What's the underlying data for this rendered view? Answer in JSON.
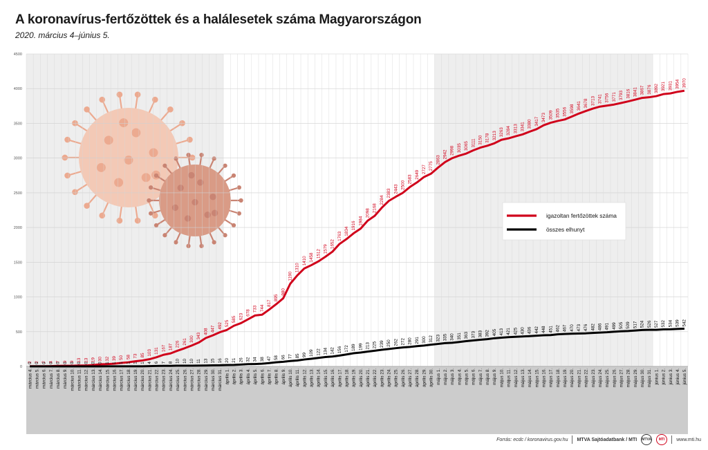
{
  "title": "A koronavírus-fertőzöttek és a halálesetek száma Magyarországon",
  "subtitle": "2020. március 4–június 5.",
  "footer": {
    "source": "Forrás: ecdc / koronavirus.gov.hu",
    "agency": "MTVA Sajtóadatbank / MTI",
    "logo_1": "MTVA",
    "logo_2": "MTI",
    "website": "www.mti.hu"
  },
  "chart_data": {
    "type": "line",
    "title": "A koronavírus-fertőzöttek és a halálesetek száma Magyarországon",
    "subtitle": "2020. március 4–június 5.",
    "xlabel": "",
    "ylabel": "",
    "ylim": [
      0,
      4500
    ],
    "yticks": [
      0,
      500,
      1000,
      1500,
      2000,
      2500,
      3000,
      3500,
      4000,
      4500
    ],
    "grid": true,
    "legend_position": "right",
    "colors": {
      "infected": "#d0021b",
      "deaths": "#000000",
      "axis_band": "#cccccc"
    },
    "categories": [
      "március 4.",
      "március 5.",
      "március 6.",
      "március 7.",
      "március 8.",
      "március 9.",
      "március 10.",
      "március 11.",
      "március 12.",
      "március 13.",
      "március 14.",
      "március 15.",
      "március 16.",
      "március 17.",
      "március 18.",
      "március 19.",
      "március 20.",
      "március 21.",
      "március 22.",
      "március 23.",
      "március 24.",
      "március 25.",
      "március 26.",
      "március 27.",
      "március 28.",
      "március 29.",
      "március 30.",
      "március 31.",
      "április 1.",
      "április 2.",
      "április 3.",
      "április 4.",
      "április 5.",
      "április 6.",
      "április 7.",
      "április 8.",
      "április 9.",
      "április 10.",
      "április 11.",
      "április 12.",
      "április 13.",
      "április 14.",
      "április 15.",
      "április 16.",
      "április 17.",
      "április 18.",
      "április 19.",
      "április 20.",
      "április 21.",
      "április 22.",
      "április 23.",
      "április 24.",
      "április 25.",
      "április 26.",
      "április 27.",
      "április 28.",
      "április 29.",
      "április 30.",
      "május 1.",
      "május 2.",
      "május 3.",
      "május 4.",
      "május 5.",
      "május 6.",
      "május 7.",
      "május 8.",
      "május 9.",
      "május 10.",
      "május 11.",
      "május 12.",
      "május 13.",
      "május 14.",
      "május 15.",
      "május 16.",
      "május 17.",
      "május 18.",
      "május 19.",
      "május 20.",
      "május 21.",
      "május 22.",
      "május 23.",
      "május 24.",
      "május 25.",
      "május 26.",
      "május 27.",
      "május 28.",
      "május 29.",
      "május 30.",
      "május 31.",
      "június 1.",
      "június 2.",
      "június 3.",
      "június 4.",
      "június 5."
    ],
    "series": [
      {
        "name": "igazoltan fertőzöttek száma",
        "values": [
          2,
          2,
          2,
          4,
          7,
          9,
          9,
          13,
          13,
          19,
          30,
          32,
          39,
          50,
          58,
          73,
          85,
          103,
          131,
          167,
          187,
          226,
          261,
          300,
          343,
          408,
          447,
          492,
          525,
          585,
          623,
          678,
          733,
          744,
          817,
          895,
          980,
          1190,
          1310,
          1410,
          1458,
          1512,
          1579,
          1652,
          1763,
          1834,
          1916,
          1984,
          2098,
          2168,
          2284,
          2383,
          2443,
          2500,
          2583,
          2649,
          2727,
          2775,
          2863,
          2942,
          2998,
          3035,
          3065,
          3111,
          3150,
          3178,
          3213,
          3263,
          3284,
          3313,
          3341,
          3380,
          3417,
          3473,
          3509,
          3535,
          3556,
          3598,
          3641,
          3678,
          3713,
          3741,
          3756,
          3771,
          3793,
          3816,
          3841,
          3867,
          3876,
          3892,
          3921,
          3931,
          3954,
          3970
        ]
      },
      {
        "name": "összes elhunyt",
        "values": [
          0,
          0,
          0,
          0,
          0,
          0,
          0,
          0,
          0,
          0,
          0,
          1,
          1,
          1,
          1,
          1,
          1,
          4,
          6,
          7,
          8,
          10,
          10,
          10,
          11,
          13,
          15,
          16,
          20,
          21,
          26,
          32,
          34,
          38,
          47,
          58,
          66,
          77,
          85,
          99,
          109,
          122,
          134,
          142,
          156,
          172,
          189,
          199,
          213,
          225,
          239,
          250,
          262,
          272,
          280,
          291,
          300,
          312,
          323,
          335,
          340,
          351,
          363,
          373,
          383,
          392,
          405,
          413,
          421,
          425,
          430,
          436,
          442,
          448,
          451,
          462,
          467,
          470,
          473,
          476,
          482,
          486,
          491,
          499,
          505,
          509,
          517,
          524,
          526,
          527,
          532,
          534,
          539,
          542
        ]
      }
    ]
  }
}
